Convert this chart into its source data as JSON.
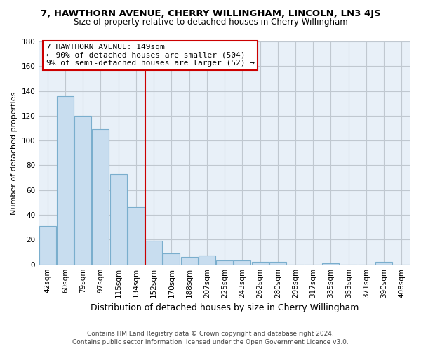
{
  "title": "7, HAWTHORN AVENUE, CHERRY WILLINGHAM, LINCOLN, LN3 4JS",
  "subtitle": "Size of property relative to detached houses in Cherry Willingham",
  "xlabel": "Distribution of detached houses by size in Cherry Willingham",
  "ylabel": "Number of detached properties",
  "categories": [
    "42sqm",
    "60sqm",
    "79sqm",
    "97sqm",
    "115sqm",
    "134sqm",
    "152sqm",
    "170sqm",
    "188sqm",
    "207sqm",
    "225sqm",
    "243sqm",
    "262sqm",
    "280sqm",
    "298sqm",
    "317sqm",
    "335sqm",
    "353sqm",
    "371sqm",
    "390sqm",
    "408sqm"
  ],
  "values": [
    31,
    136,
    120,
    109,
    73,
    46,
    19,
    9,
    6,
    7,
    3,
    3,
    2,
    2,
    0,
    0,
    1,
    0,
    0,
    2,
    0
  ],
  "bar_color": "#c8ddef",
  "bar_edge_color": "#7aaecd",
  "vline_color": "#cc0000",
  "annotation_title": "7 HAWTHORN AVENUE: 149sqm",
  "annotation_line1": "← 90% of detached houses are smaller (504)",
  "annotation_line2": "9% of semi-detached houses are larger (52) →",
  "annotation_box_color": "#ffffff",
  "annotation_box_edge": "#cc0000",
  "ylim": [
    0,
    180
  ],
  "yticks": [
    0,
    20,
    40,
    60,
    80,
    100,
    120,
    140,
    160,
    180
  ],
  "footer_line1": "Contains HM Land Registry data © Crown copyright and database right 2024.",
  "footer_line2": "Contains public sector information licensed under the Open Government Licence v3.0.",
  "background_color": "#ffffff",
  "plot_bg_color": "#e8f0f8",
  "grid_color": "#c0c8d0",
  "title_fontsize": 9.5,
  "subtitle_fontsize": 8.5,
  "ylabel_fontsize": 8,
  "xlabel_fontsize": 9,
  "annotation_fontsize": 8,
  "tick_fontsize": 7.5,
  "footer_fontsize": 6.5
}
